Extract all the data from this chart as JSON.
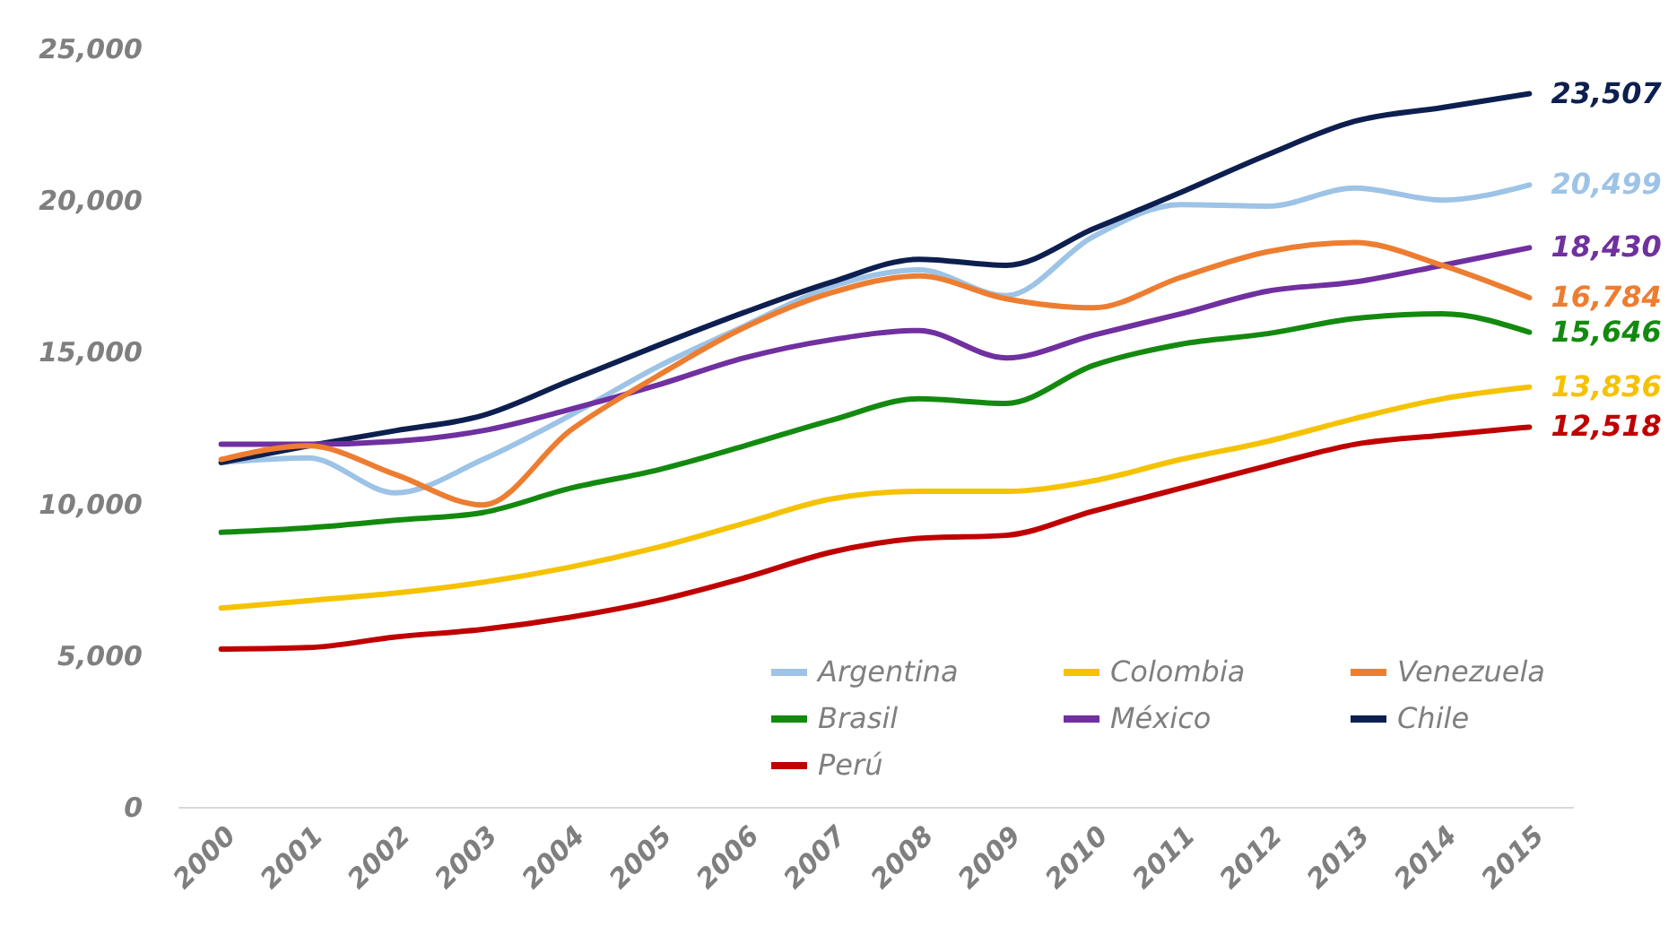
{
  "chart_data": {
    "type": "line",
    "categories": [
      "2000",
      "2001",
      "2002",
      "2003",
      "2004",
      "2005",
      "2006",
      "2007",
      "2008",
      "2009",
      "2010",
      "2011",
      "2012",
      "2013",
      "2014",
      "2015"
    ],
    "ylim": [
      0,
      25000
    ],
    "yticks": [
      {
        "value": 0,
        "label": "0"
      },
      {
        "value": 5000,
        "label": "5,000"
      },
      {
        "value": 10000,
        "label": "10,000"
      },
      {
        "value": 15000,
        "label": "15,000"
      },
      {
        "value": 20000,
        "label": "20,000"
      },
      {
        "value": 25000,
        "label": "25,000"
      }
    ],
    "grid": false,
    "legend": "bottom right",
    "line_style": "solid",
    "series": [
      {
        "name": "Argentina",
        "color": "#9dc3e6",
        "values": [
          11350,
          11500,
          10350,
          11450,
          12900,
          14500,
          15850,
          17150,
          17700,
          16850,
          18800,
          19850,
          19800,
          20400,
          20000,
          20499
        ],
        "value_labels": [
          null,
          null,
          null,
          null,
          null,
          null,
          null,
          null,
          null,
          null,
          null,
          null,
          null,
          null,
          null,
          "20,499"
        ]
      },
      {
        "name": "Brasil",
        "color": "#138a0f",
        "values": [
          9050,
          9200,
          9450,
          9700,
          10500,
          11100,
          11900,
          12750,
          13450,
          13300,
          14550,
          15250,
          15600,
          16100,
          16250,
          15646
        ],
        "value_labels": [
          null,
          null,
          null,
          null,
          null,
          null,
          null,
          null,
          null,
          null,
          null,
          null,
          null,
          null,
          null,
          "15,646"
        ]
      },
      {
        "name": "Chile",
        "color": "#0d1f4f",
        "values": [
          11350,
          11900,
          12400,
          12900,
          14050,
          15200,
          16300,
          17300,
          18050,
          17850,
          19050,
          20250,
          21500,
          22600,
          23050,
          23507
        ],
        "value_labels": [
          null,
          null,
          null,
          null,
          null,
          null,
          null,
          null,
          null,
          null,
          null,
          null,
          null,
          null,
          null,
          "23,507"
        ]
      },
      {
        "name": "Colombia",
        "color": "#f5c200",
        "values": [
          6550,
          6800,
          7050,
          7400,
          7900,
          8550,
          9350,
          10150,
          10400,
          10400,
          10750,
          11450,
          12050,
          12800,
          13450,
          13836
        ],
        "value_labels": [
          null,
          null,
          null,
          null,
          null,
          null,
          null,
          null,
          null,
          null,
          null,
          null,
          null,
          null,
          null,
          "13,836"
        ]
      },
      {
        "name": "México",
        "color": "#7030a0",
        "values": [
          11950,
          11950,
          12050,
          12400,
          13100,
          13900,
          14800,
          15400,
          15700,
          14800,
          15550,
          16250,
          17000,
          17300,
          17850,
          18430
        ],
        "value_labels": [
          null,
          null,
          null,
          null,
          null,
          null,
          null,
          null,
          null,
          null,
          null,
          null,
          null,
          null,
          null,
          "18,430"
        ]
      },
      {
        "name": "Perú",
        "color": "#c00000",
        "values": [
          5200,
          5250,
          5600,
          5850,
          6250,
          6800,
          7550,
          8400,
          8850,
          8950,
          9750,
          10500,
          11250,
          11950,
          12250,
          12518
        ],
        "value_labels": [
          null,
          null,
          null,
          null,
          null,
          null,
          null,
          null,
          null,
          null,
          null,
          null,
          null,
          null,
          null,
          "12,518"
        ]
      },
      {
        "name": "Venezuela",
        "color": "#ed7d31",
        "values": [
          11450,
          11900,
          10950,
          9950,
          12400,
          14200,
          15800,
          16950,
          17500,
          16750,
          16450,
          17450,
          18300,
          18600,
          17850,
          16784
        ],
        "value_labels": [
          null,
          null,
          null,
          null,
          null,
          null,
          null,
          null,
          null,
          null,
          null,
          null,
          null,
          null,
          null,
          "16,784"
        ]
      }
    ]
  }
}
